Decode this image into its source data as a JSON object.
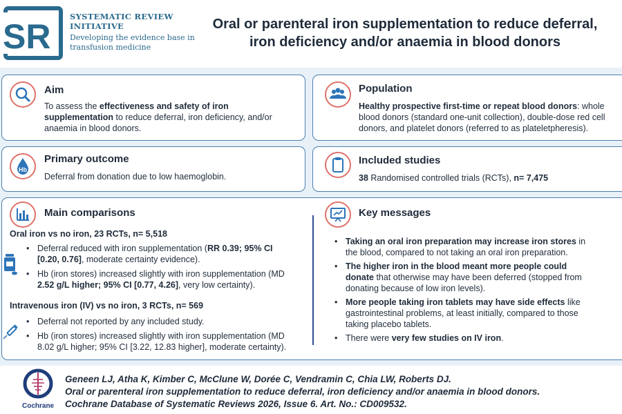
{
  "header": {
    "logo_letters": "SR",
    "org_line1": "SYSTEMATIC REVIEW",
    "org_line2": "INITIATIVE",
    "tagline1": "Developing the evidence base in",
    "tagline2": "transfusion medicine",
    "title_line1": "Oral or parenteral iron supplementation to reduce deferral,",
    "title_line2": "iron deficiency and/or anaemia in blood donors"
  },
  "aim": {
    "title": "Aim",
    "t1": "To assess the ",
    "b1": "effectiveness and safety of iron",
    "b2": "supplementation",
    "t2": " to reduce deferral, iron deficiency, and/or",
    "t3": "anaemia in blood donors."
  },
  "population": {
    "title": "Population",
    "b1": "Healthy prospective first-time or repeat blood donors",
    "t1": ": whole",
    "t2": "blood donors (standard one-unit collection), double-dose red cell",
    "t3": "donors, and platelet donors (referred to as plateletpheresis)."
  },
  "primary": {
    "title": "Primary outcome",
    "icon_text": "Hb",
    "text": "Deferral from donation due to low haemoglobin."
  },
  "included": {
    "title": "Included studies",
    "b1": "38",
    "t1": " Randomised controlled trials (RCTs), ",
    "b2": "n= 7,475"
  },
  "comparisons": {
    "title": "Main comparisons",
    "oral_heading": "Oral iron vs no iron, 23 RCTs, n= 5,518",
    "oral_b1_t1": "Deferral reduced with iron supplementation (",
    "oral_b1_b1": "RR 0.39; 95% CI",
    "oral_b1_b2": "[0.20, 0.76]",
    "oral_b1_t2": ", moderate certainty evidence).",
    "oral_b2_t1": "Hb (iron stores) increased slightly with iron supplementation (MD",
    "oral_b2_b1": "2.52 g/L higher; 95% CI [0.77, 4.26]",
    "oral_b2_t2": ", very low certainty).",
    "iv_heading": "Intravenous iron (IV) vs no iron, 3 RCTs, n= 569",
    "iv_b1": "Deferral not reported by any included study.",
    "iv_b2_l1": "Hb (iron stores) increased slightly with iron supplementation (MD",
    "iv_b2_l2": "8.02 g/L higher; 95% CI [3.22, 12.83 higher], moderate certainty)."
  },
  "key_messages": {
    "title": "Key messages",
    "m1_b": "Taking an oral iron preparation may increase iron stores",
    "m1_t1": " in",
    "m1_t2": "the blood, compared to not taking an oral iron preparation.",
    "m2_b1": "The higher iron in the blood meant more people could",
    "m2_b2": "donate",
    "m2_t1": " that otherwise may have been deferred (stopped from",
    "m2_t2": "donating because of low iron levels).",
    "m3_b": "More people taking iron tablets may have side effects",
    "m3_t1": " like",
    "m3_t2": "gastrointestinal problems, at least initially, compared to those",
    "m3_t3": "taking placebo tablets.",
    "m4_t1": "There were ",
    "m4_b": "very few studies on IV iron",
    "m4_t2": "."
  },
  "footer": {
    "logo_label": "Cochrane",
    "authors": "Geneen LJ, Atha K, Kimber C, McClune W, Dorée C, Vendramin C, Chia LW, Roberts DJ.",
    "review_title": "Oral or parenteral iron supplementation to reduce deferral, iron deficiency and/or anaemia in blood donors.",
    "journal": "Cochrane Database of Systematic Reviews 2026, Issue 6. Art. No.: CD009532."
  },
  "icons": {
    "aim": "magnifier-icon",
    "population": "people-group-icon",
    "primary": "blood-drop-icon",
    "included": "clipboard-icon",
    "comparisons": "bar-chart-icon",
    "key_messages": "presentation-icon",
    "oral": "pill-bottle-icon",
    "iv": "syringe-icon",
    "footer": "cochrane-logo-icon"
  },
  "colors": {
    "brand": "#2a6a8e",
    "card_border": "#4a7fae",
    "icon_ring": "#e0706a",
    "band": "#e9f1f8",
    "icon_blue": "#2d74b8"
  }
}
